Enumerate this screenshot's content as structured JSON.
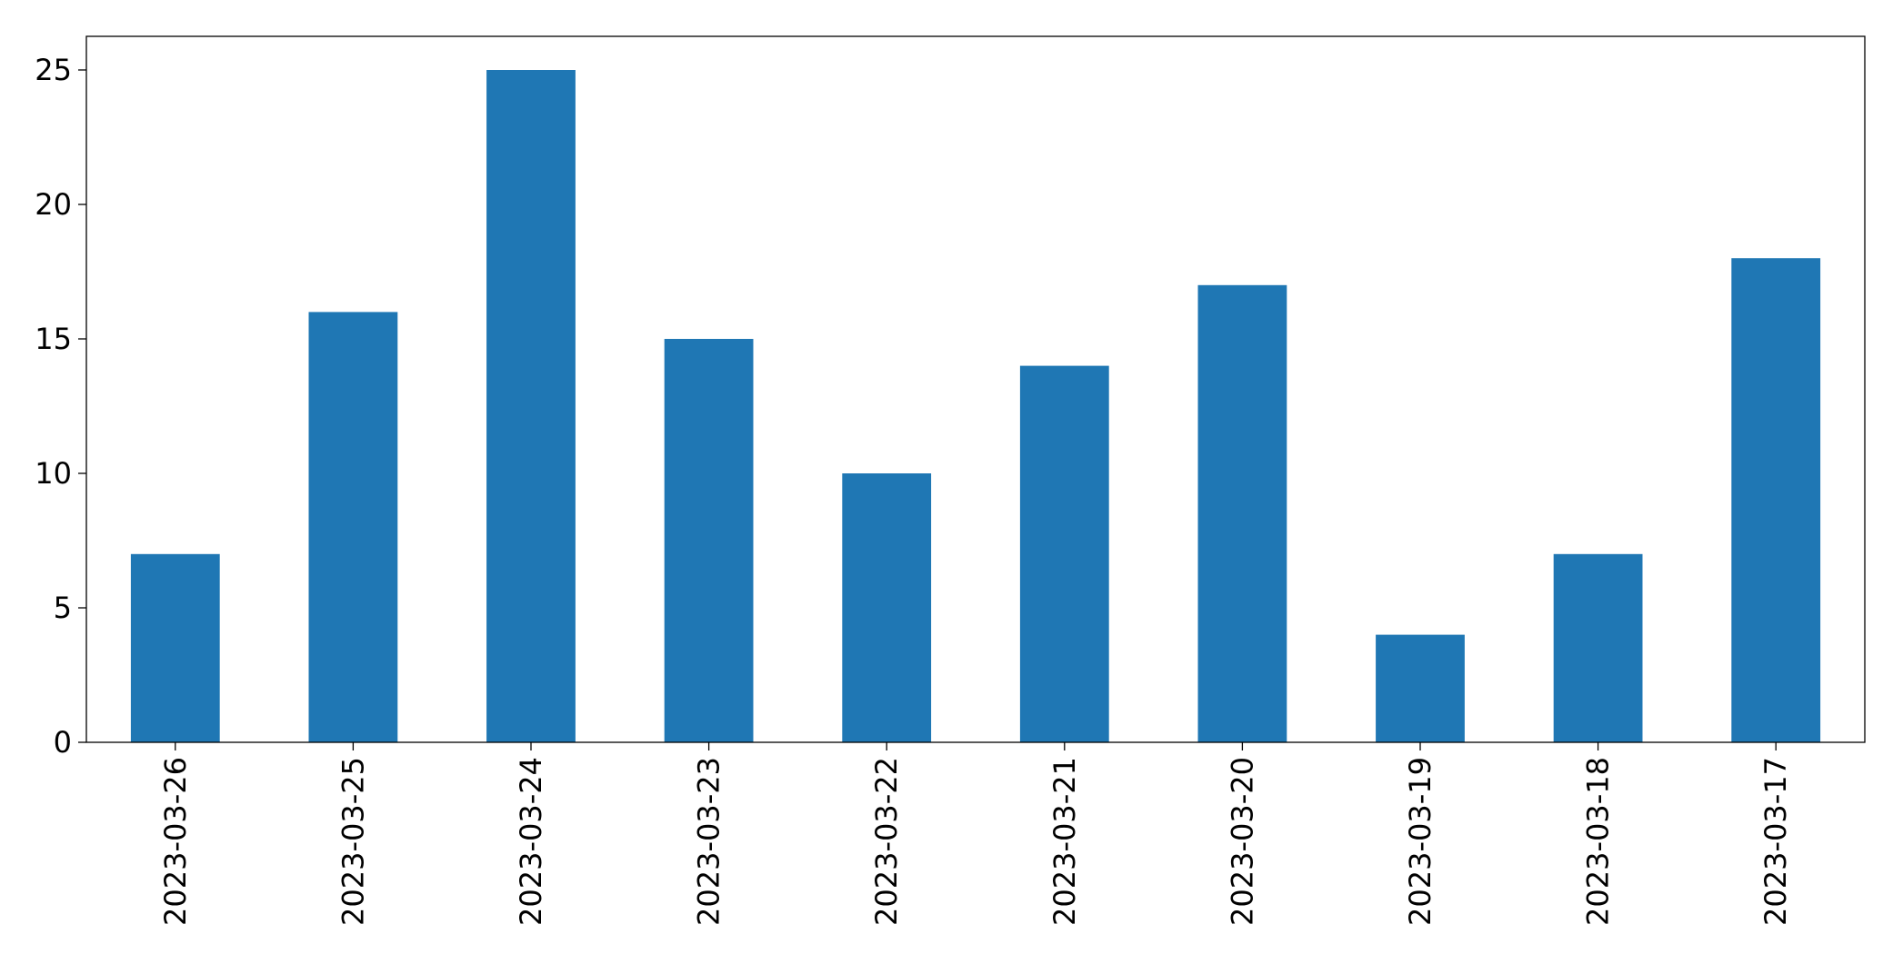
{
  "chart_data": {
    "type": "bar",
    "categories": [
      "2023-03-26",
      "2023-03-25",
      "2023-03-24",
      "2023-03-23",
      "2023-03-22",
      "2023-03-21",
      "2023-03-20",
      "2023-03-19",
      "2023-03-18",
      "2023-03-17"
    ],
    "values": [
      7,
      16,
      25,
      15,
      10,
      14,
      17,
      4,
      7,
      18
    ],
    "color": "#1f77b4",
    "ylim": [
      0,
      26.25
    ],
    "yticks": [
      0,
      5,
      10,
      15,
      20,
      25
    ],
    "grid": false
  }
}
